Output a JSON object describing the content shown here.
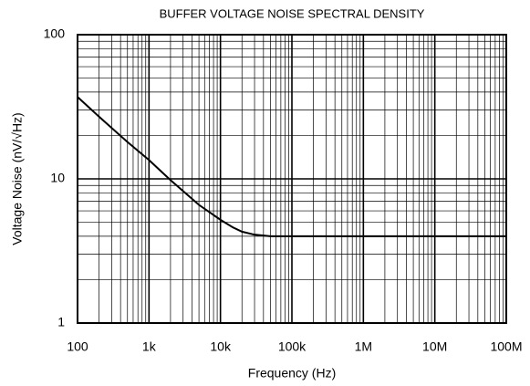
{
  "chart_data": {
    "type": "line",
    "title": "BUFFER VOLTAGE NOISE SPECTRAL DENSITY",
    "xlabel": "Frequency (Hz)",
    "ylabel": "Voltage Noise (nV/√Hz)",
    "x": [
      100,
      200,
      500,
      1000,
      2000,
      5000,
      10000,
      15000,
      20000,
      30000,
      50000,
      100000,
      1000000,
      10000000,
      100000000
    ],
    "values": [
      37,
      27,
      18,
      13.5,
      9.8,
      6.6,
      5.2,
      4.6,
      4.3,
      4.1,
      4.0,
      4.0,
      4.0,
      4.0,
      4.0
    ],
    "color": "#000000",
    "xlim": [
      100,
      100000000
    ],
    "ylim": [
      1,
      100
    ],
    "xticks": [
      100,
      {
        "value": 1000,
        "label": "1k"
      },
      {
        "value": 10000,
        "label": "10k"
      },
      {
        "value": 100000,
        "label": "100k"
      },
      {
        "value": 1000000,
        "label": "1M"
      },
      {
        "value": 10000000,
        "label": "10M"
      },
      {
        "value": 100000000,
        "label": "100M"
      }
    ],
    "yticks": [
      1,
      10,
      100
    ],
    "xlog": true,
    "ylog": true,
    "grid": true,
    "minor_grid": true
  }
}
